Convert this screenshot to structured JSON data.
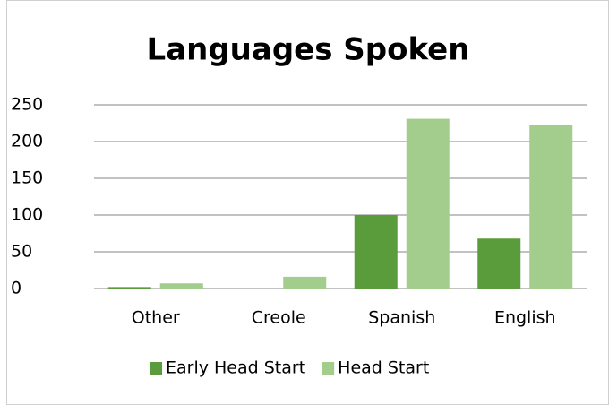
{
  "chart_data": {
    "type": "bar",
    "title": "Languages Spoken",
    "categories": [
      "Other",
      "Creole",
      "Spanish",
      "English"
    ],
    "series": [
      {
        "name": "Early Head Start",
        "color": "#5a9c3b",
        "values": [
          2,
          0,
          100,
          68
        ]
      },
      {
        "name": "Head Start",
        "color": "#a2cd8c",
        "values": [
          7,
          16,
          231,
          223
        ]
      }
    ],
    "ylim": [
      0,
      250
    ],
    "yticks": [
      0,
      50,
      100,
      150,
      200,
      250
    ],
    "grid": true,
    "legend": "bottom"
  }
}
